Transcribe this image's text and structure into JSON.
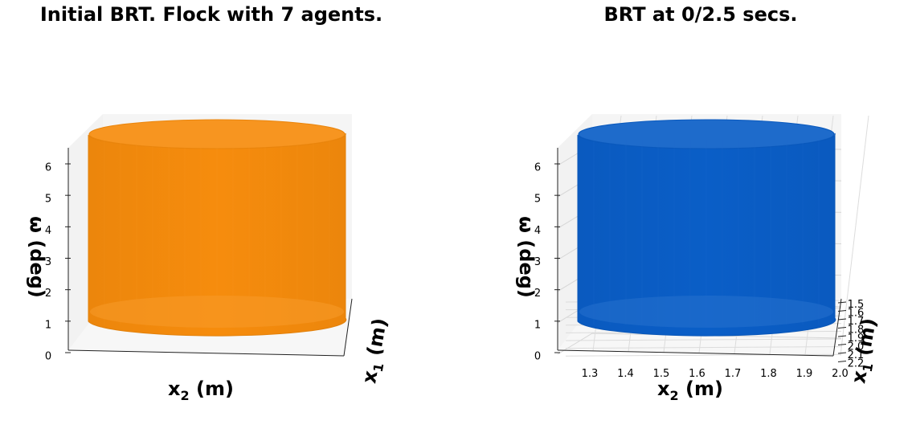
{
  "chart_data": [
    {
      "type": "surface3d",
      "title": "Initial BRT. Flock with 7 agents.",
      "xlabel_main": "x",
      "xlabel_sub": "2",
      "xlabel_unit": " (m)",
      "ylabel_main": "x",
      "ylabel_sub": "1",
      "ylabel_unit": " (m)",
      "zlabel_main": "ω",
      "zlabel_unit": "(deg)",
      "z_ticks": [
        "0",
        "1",
        "2",
        "3",
        "4",
        "5",
        "6"
      ],
      "x_ticks": [],
      "y_ticks": [],
      "zlim": [
        0,
        6.5
      ],
      "surface_color": "#f68c0d",
      "grid": false
    },
    {
      "type": "surface3d",
      "title": "BRT at 0/2.5 secs.",
      "xlabel_main": "x",
      "xlabel_sub": "2",
      "xlabel_unit": " (m)",
      "ylabel_main": "x",
      "ylabel_sub": "1",
      "ylabel_unit": " (m)",
      "zlabel_main": "ω",
      "zlabel_unit": "(deg)",
      "z_ticks": [
        "0",
        "1",
        "2",
        "3",
        "4",
        "5",
        "6"
      ],
      "x_ticks": [
        "1.3",
        "1.4",
        "1.5",
        "1.6",
        "1.7",
        "1.8",
        "1.9",
        "2.0"
      ],
      "y_ticks": [
        "1.5",
        "1.6",
        "1.7",
        "1.8",
        "1.9",
        "2.0",
        "2.1",
        "2.2"
      ],
      "zlim": [
        0,
        6.5
      ],
      "surface_color": "#0a5ec7",
      "grid": true
    }
  ]
}
